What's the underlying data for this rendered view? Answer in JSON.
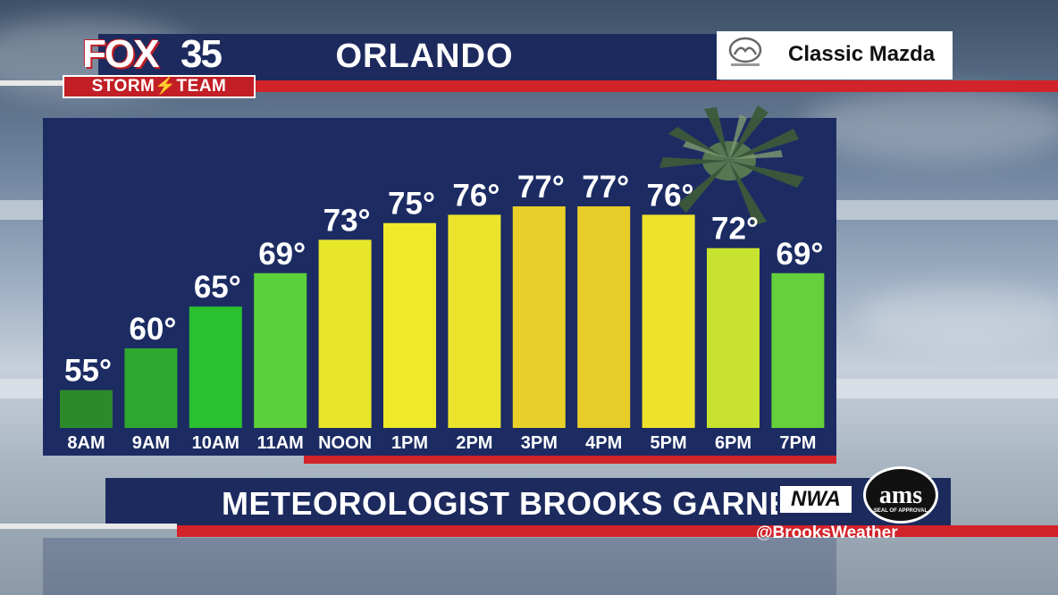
{
  "station": {
    "logo_fox": "FOX",
    "logo_number": "35",
    "logo_storm_team": "STORM⚡TEAM"
  },
  "location": "ORLANDO",
  "sponsor": {
    "name": "Classic Mazda",
    "emblem": "mazda-emblem-icon"
  },
  "meteorologist": "METEOROLOGIST BROOKS GARNER",
  "badges": {
    "nwa": "NWA",
    "ams": "ams",
    "ams_sub": "SEAL OF APPROVAL"
  },
  "social_handle": "@BrooksWeather",
  "colors": {
    "navy": "#1c2a5e",
    "panel": "#1c2c63",
    "red": "#d2232a"
  },
  "chart_data": {
    "type": "bar",
    "title": "",
    "xlabel": "",
    "ylabel": "",
    "unit": "°",
    "categories": [
      "8AM",
      "9AM",
      "10AM",
      "11AM",
      "NOON",
      "1PM",
      "2PM",
      "3PM",
      "4PM",
      "5PM",
      "6PM",
      "7PM"
    ],
    "values": [
      55,
      60,
      65,
      69,
      73,
      75,
      76,
      77,
      77,
      76,
      72,
      69
    ],
    "bar_colors": [
      "#2c8a2a",
      "#2fa82f",
      "#2bc02f",
      "#5cd03a",
      "#e8e62a",
      "#eeea2a",
      "#ece42c",
      "#e8cf2a",
      "#e8cc28",
      "#ede22c",
      "#c7e22f",
      "#63d03c"
    ],
    "grid": false,
    "legend": "none"
  }
}
